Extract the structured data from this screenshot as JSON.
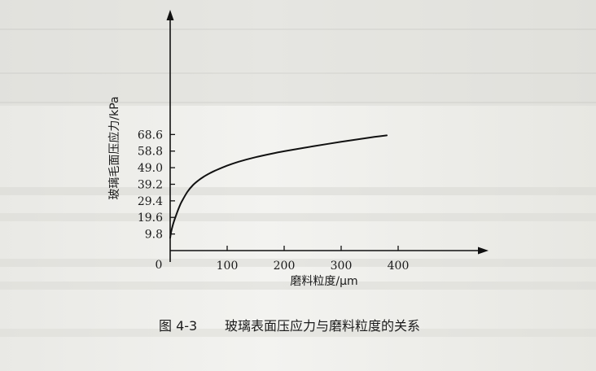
{
  "chart_data": {
    "type": "line",
    "title": "",
    "xlabel": "磨料粒度/μm",
    "ylabel": "玻璃毛面压应力/kPa",
    "xlim": [
      0,
      480
    ],
    "ylim": [
      0,
      78.4
    ],
    "x_ticks": [
      "0",
      "100",
      "200",
      "300",
      "400"
    ],
    "y_ticks": [
      "9.8",
      "19.6",
      "29.4",
      "39.2",
      "49.0",
      "58.8",
      "68.6"
    ],
    "grid": false,
    "legend": "none",
    "series": [
      {
        "x": [
          0,
          2,
          5,
          10,
          15,
          20,
          30,
          40,
          50,
          60,
          70,
          80,
          100,
          120,
          150,
          180,
          200,
          250,
          300,
          350,
          380
        ],
        "y": [
          7.5,
          11.5,
          15.5,
          20.5,
          25.0,
          28.8,
          34.6,
          38.7,
          41.6,
          43.9,
          45.8,
          47.4,
          50.2,
          52.5,
          55.2,
          57.4,
          58.7,
          61.6,
          64.3,
          66.8,
          68.1
        ]
      }
    ],
    "colors": {
      "curve": "#111111",
      "axis": "#111111"
    }
  },
  "figure": {
    "caption_label": "图 4-3",
    "caption_text": "玻璃表面压应力与磨料粒度的关系"
  }
}
